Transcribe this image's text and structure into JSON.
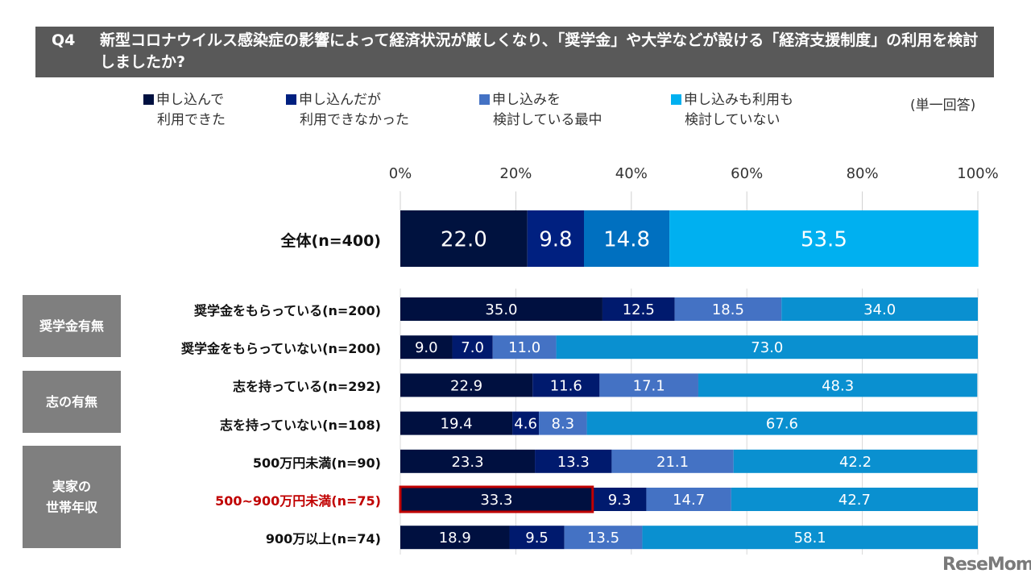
{
  "title": {
    "q": "Q4",
    "text": "新型コロナウイルス感染症の影響によって経済状況が厳しくなり、「奨学金」や大学などが設ける「経済支援制度」の利用を検討しましたか?"
  },
  "note": "(単一回答)",
  "logo": "ReseMom",
  "chart_data": {
    "type": "bar",
    "orientation": "horizontal",
    "stacked": true,
    "xlim": [
      0,
      100
    ],
    "xticks": [
      "0%",
      "20%",
      "40%",
      "60%",
      "80%",
      "100%"
    ],
    "legend": [
      {
        "line1": "申し込んで",
        "line2": "利用できた",
        "color": "#001040"
      },
      {
        "line1": "申し込んだが",
        "line2": "利用できなかった",
        "color": "#002080"
      },
      {
        "line1": "申し込みを",
        "line2": "検討している最中",
        "color": "#4472c4"
      },
      {
        "line1": "申し込みも利用も",
        "line2": "検討していない",
        "color": "#00b0f0"
      }
    ],
    "overall": {
      "label": "全体(n=400)",
      "values": [
        22.0,
        9.8,
        14.8,
        53.5
      ],
      "colors": [
        "#00123f",
        "#002080",
        "#0070c0",
        "#00b0f0"
      ]
    },
    "sub_colors": [
      "#001040",
      "#001a6e",
      "#4472c4",
      "#0a90d0"
    ],
    "groups": [
      {
        "label": "奨学金有無",
        "rows": [
          0,
          1
        ]
      },
      {
        "label": "志の有無",
        "rows": [
          2,
          3
        ]
      },
      {
        "label": "実家の\n世帯年収",
        "rows": [
          4,
          5,
          6
        ]
      }
    ],
    "rows": [
      {
        "label": "奨学金をもらっている(n=200)",
        "values": [
          35.0,
          12.5,
          18.5,
          34.0
        ]
      },
      {
        "label": "奨学金をもらっていない(n=200)",
        "values": [
          9.0,
          7.0,
          11.0,
          73.0
        ]
      },
      {
        "label": "志を持っている(n=292)",
        "values": [
          22.9,
          11.6,
          17.1,
          48.3
        ]
      },
      {
        "label": "志を持っていない(n=108)",
        "values": [
          19.4,
          4.6,
          8.3,
          67.6
        ]
      },
      {
        "label": "500万円未満(n=90)",
        "values": [
          23.3,
          13.3,
          21.1,
          42.2
        ]
      },
      {
        "label": "500~900万円未満(n=75)",
        "values": [
          33.3,
          9.3,
          14.7,
          42.7
        ],
        "highlight": true,
        "highlight_color": "#c00000"
      },
      {
        "label": "900万以上(n=74)",
        "values": [
          18.9,
          9.5,
          13.5,
          58.1
        ]
      }
    ]
  }
}
